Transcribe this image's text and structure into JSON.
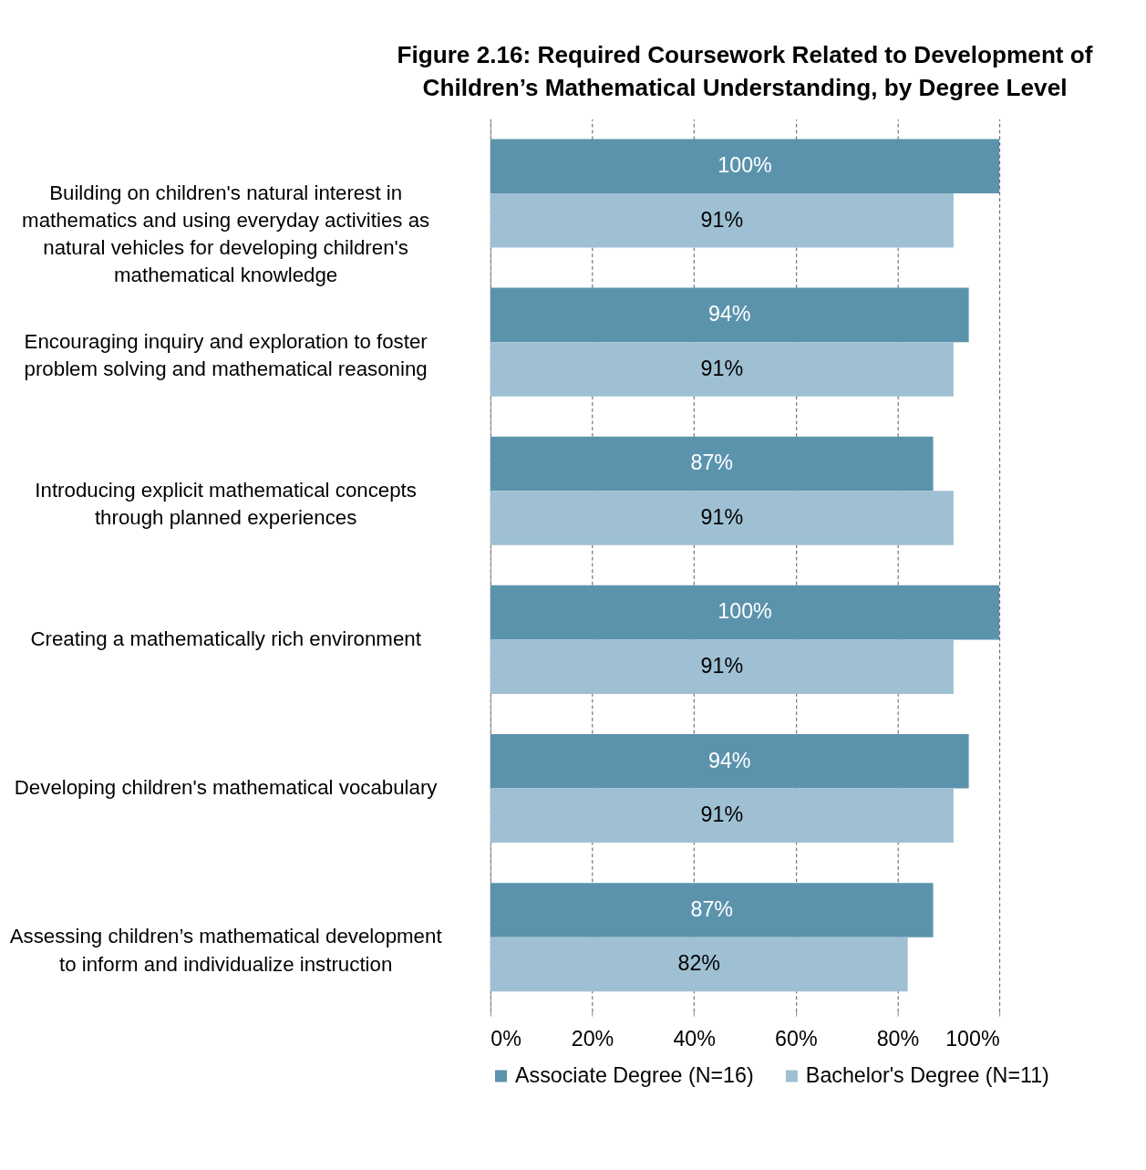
{
  "chart_data": {
    "type": "bar",
    "orientation": "horizontal",
    "title": "Figure 2.16: Required Coursework Related to Development of Children’s Mathematical Understanding, by Degree Level",
    "categories": [
      "Building on children's natural interest in mathematics and using everyday activities as natural vehicles for developing children's mathematical knowledge",
      "Encouraging inquiry and exploration to foster problem solving and mathematical reasoning",
      "Introducing explicit mathematical concepts through planned experiences",
      "Creating a mathematically rich environment",
      "Developing children's mathematical vocabulary",
      "Assessing children’s mathematical development to inform and individualize instruction"
    ],
    "series": [
      {
        "name": "Associate Degree (N=16)",
        "color": "#5b93ad",
        "values": [
          100,
          94,
          87,
          100,
          94,
          87
        ],
        "value_labels": [
          "100%",
          "94%",
          "87%",
          "100%",
          "94%",
          "87%"
        ]
      },
      {
        "name": "Bachelor's Degree (N=11)",
        "color": "#9fc0d3",
        "values": [
          91,
          91,
          91,
          91,
          91,
          82
        ],
        "value_labels": [
          "91%",
          "91%",
          "91%",
          "91%",
          "91%",
          "82%"
        ]
      }
    ],
    "xlim": [
      0,
      100
    ],
    "xticks": [
      {
        "value": 0,
        "label": "0%"
      },
      {
        "value": 20,
        "label": "20%"
      },
      {
        "value": 40,
        "label": "40%"
      },
      {
        "value": 60,
        "label": "60%"
      },
      {
        "value": 80,
        "label": "80%"
      },
      {
        "value": 100,
        "label": "100%"
      }
    ],
    "grid": "x",
    "legend": "bottom"
  }
}
